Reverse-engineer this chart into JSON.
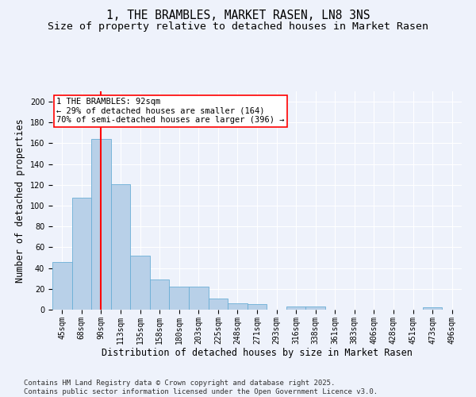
{
  "title": "1, THE BRAMBLES, MARKET RASEN, LN8 3NS",
  "subtitle": "Size of property relative to detached houses in Market Rasen",
  "xlabel": "Distribution of detached houses by size in Market Rasen",
  "ylabel": "Number of detached properties",
  "categories": [
    "45sqm",
    "68sqm",
    "90sqm",
    "113sqm",
    "135sqm",
    "158sqm",
    "180sqm",
    "203sqm",
    "225sqm",
    "248sqm",
    "271sqm",
    "293sqm",
    "316sqm",
    "338sqm",
    "361sqm",
    "383sqm",
    "406sqm",
    "428sqm",
    "451sqm",
    "473sqm",
    "496sqm"
  ],
  "values": [
    46,
    108,
    164,
    121,
    52,
    29,
    22,
    22,
    11,
    6,
    5,
    0,
    3,
    3,
    0,
    0,
    0,
    0,
    0,
    2,
    0
  ],
  "bar_color": "#b8d0e8",
  "bar_edge_color": "#6aaed6",
  "vline_x_index": 2,
  "vline_color": "red",
  "annotation_text": "1 THE BRAMBLES: 92sqm\n← 29% of detached houses are smaller (164)\n70% of semi-detached houses are larger (396) →",
  "annotation_box_facecolor": "white",
  "annotation_box_edgecolor": "red",
  "ylim": [
    0,
    210
  ],
  "yticks": [
    0,
    20,
    40,
    60,
    80,
    100,
    120,
    140,
    160,
    180,
    200
  ],
  "background_color": "#eef2fb",
  "grid_color": "white",
  "footer_text": "Contains HM Land Registry data © Crown copyright and database right 2025.\nContains public sector information licensed under the Open Government Licence v3.0.",
  "title_fontsize": 10.5,
  "subtitle_fontsize": 9.5,
  "axis_label_fontsize": 8.5,
  "tick_fontsize": 7,
  "annotation_fontsize": 7.5,
  "footer_fontsize": 6.5
}
